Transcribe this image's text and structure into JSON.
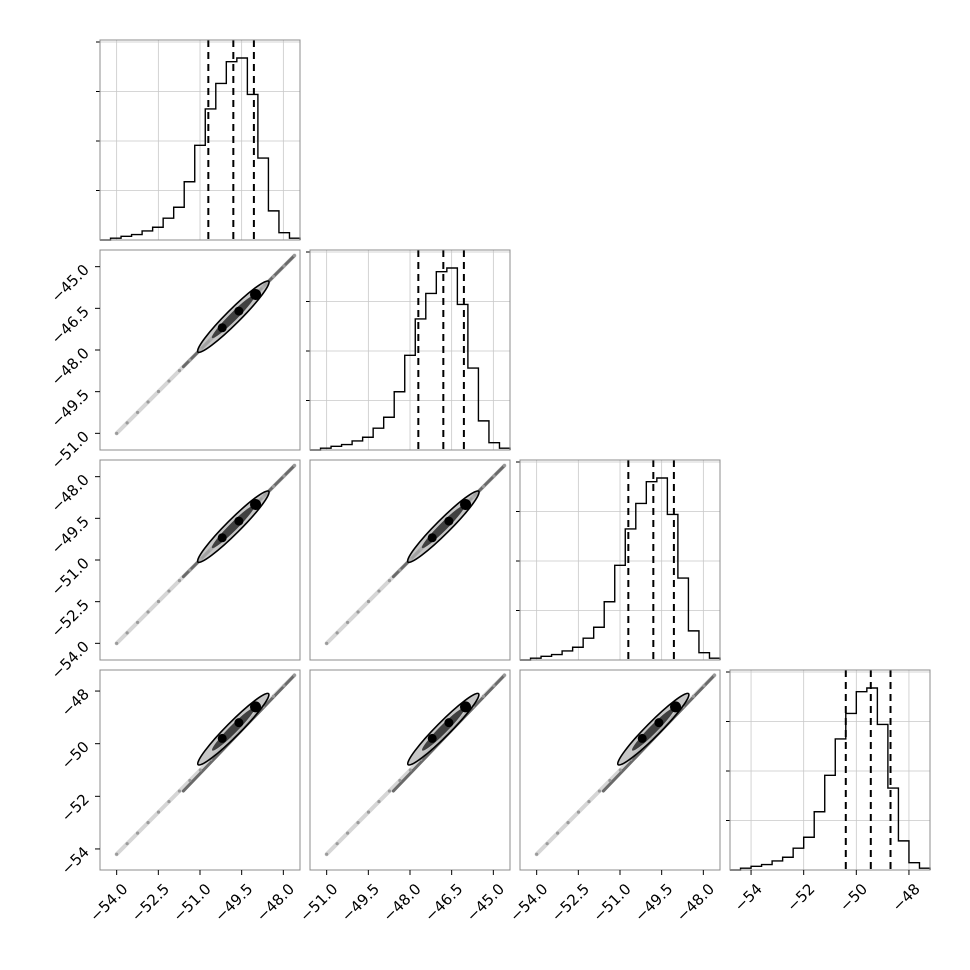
{
  "chart_data": {
    "type": "corner",
    "n_params": 4,
    "parameters": [
      {
        "index": 0,
        "range": [
          -54.6,
          -47.4
        ],
        "hist_ticks": [
          -54.0,
          -52.5,
          -51.0,
          -49.5,
          -48.0
        ],
        "tick_labels": [
          "−54.0",
          "−52.5",
          "−51.0",
          "−49.5",
          "−48.0"
        ],
        "quantiles": [
          -50.7,
          -49.8,
          -49.06
        ],
        "median": -49.8,
        "mode": -49.6
      },
      {
        "index": 1,
        "range": [
          -51.6,
          -44.4
        ],
        "hist_ticks": [
          -51.0,
          -49.5,
          -48.0,
          -46.5,
          -45.0
        ],
        "tick_labels": [
          "−51.0",
          "−49.5",
          "−48.0",
          "−46.5",
          "−45.0"
        ],
        "quantiles": [
          -47.7,
          -46.8,
          -46.06
        ],
        "median": -46.8,
        "mode": -46.6
      },
      {
        "index": 2,
        "range": [
          -54.6,
          -47.4
        ],
        "hist_ticks": [
          -54.0,
          -52.5,
          -51.0,
          -49.5,
          -48.0
        ],
        "tick_labels": [
          "−54.0",
          "−52.5",
          "−51.0",
          "−49.5",
          "−48.0"
        ],
        "quantiles": [
          -50.7,
          -49.8,
          -49.06
        ],
        "median": -49.8,
        "mode": -49.6
      },
      {
        "index": 3,
        "range": [
          -54.8,
          -47.2
        ],
        "hist_ticks": [
          -54,
          -52,
          -50,
          -48
        ],
        "tick_labels": [
          "−54",
          "−52",
          "−50",
          "−48"
        ],
        "quantiles": [
          -50.4,
          -49.45,
          -48.7
        ],
        "median": -49.45,
        "mode": -49.2
      }
    ],
    "hist_rel_heights": [
      0.0,
      0.01,
      0.02,
      0.03,
      0.05,
      0.07,
      0.12,
      0.18,
      0.32,
      0.52,
      0.72,
      0.86,
      0.98,
      1.0,
      0.8,
      0.45,
      0.16,
      0.04,
      0.01
    ],
    "grid": true,
    "y_ticks_on_hist_diagonal": 4,
    "show_hist_y_labels": false
  }
}
